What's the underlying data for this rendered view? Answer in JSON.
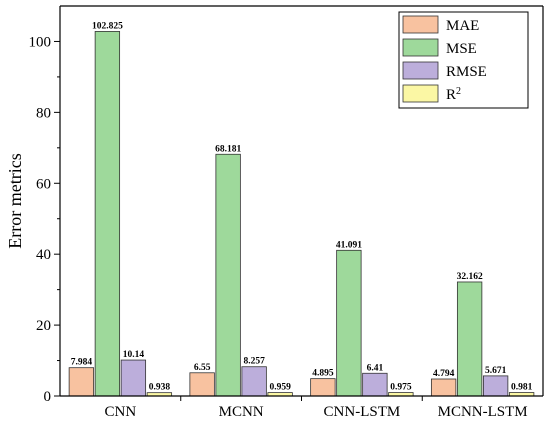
{
  "chart_data": {
    "type": "bar",
    "title": "",
    "xlabel": "",
    "ylabel": "Error metrics",
    "ylim": [
      0,
      110
    ],
    "yticks": [
      0,
      20,
      40,
      60,
      80,
      100
    ],
    "categories": [
      "CNN",
      "MCNN",
      "CNN-LSTM",
      "MCNN-LSTM"
    ],
    "series": [
      {
        "name": "MAE",
        "color": "#f8c2a0",
        "values": [
          7.984,
          6.55,
          4.895,
          4.794
        ],
        "labels": [
          "7.984",
          "6.55",
          "4.895",
          "4.794"
        ]
      },
      {
        "name": "MSE",
        "color": "#9ed99b",
        "values": [
          102.825,
          68.181,
          41.091,
          32.162
        ],
        "labels": [
          "102.825",
          "68.181",
          "41.091",
          "32.162"
        ]
      },
      {
        "name": "RMSE",
        "color": "#bcaedb",
        "values": [
          10.14,
          8.257,
          6.41,
          5.671
        ],
        "labels": [
          "10.14",
          "8.257",
          "6.41",
          "5.671"
        ]
      },
      {
        "name": "R",
        "sup": "2",
        "color": "#fbf7a4",
        "values": [
          0.938,
          0.959,
          0.975,
          0.981
        ],
        "labels": [
          "0.938",
          "0.959",
          "0.975",
          "0.981"
        ]
      }
    ],
    "legend_position": "top-right",
    "grid": false
  }
}
